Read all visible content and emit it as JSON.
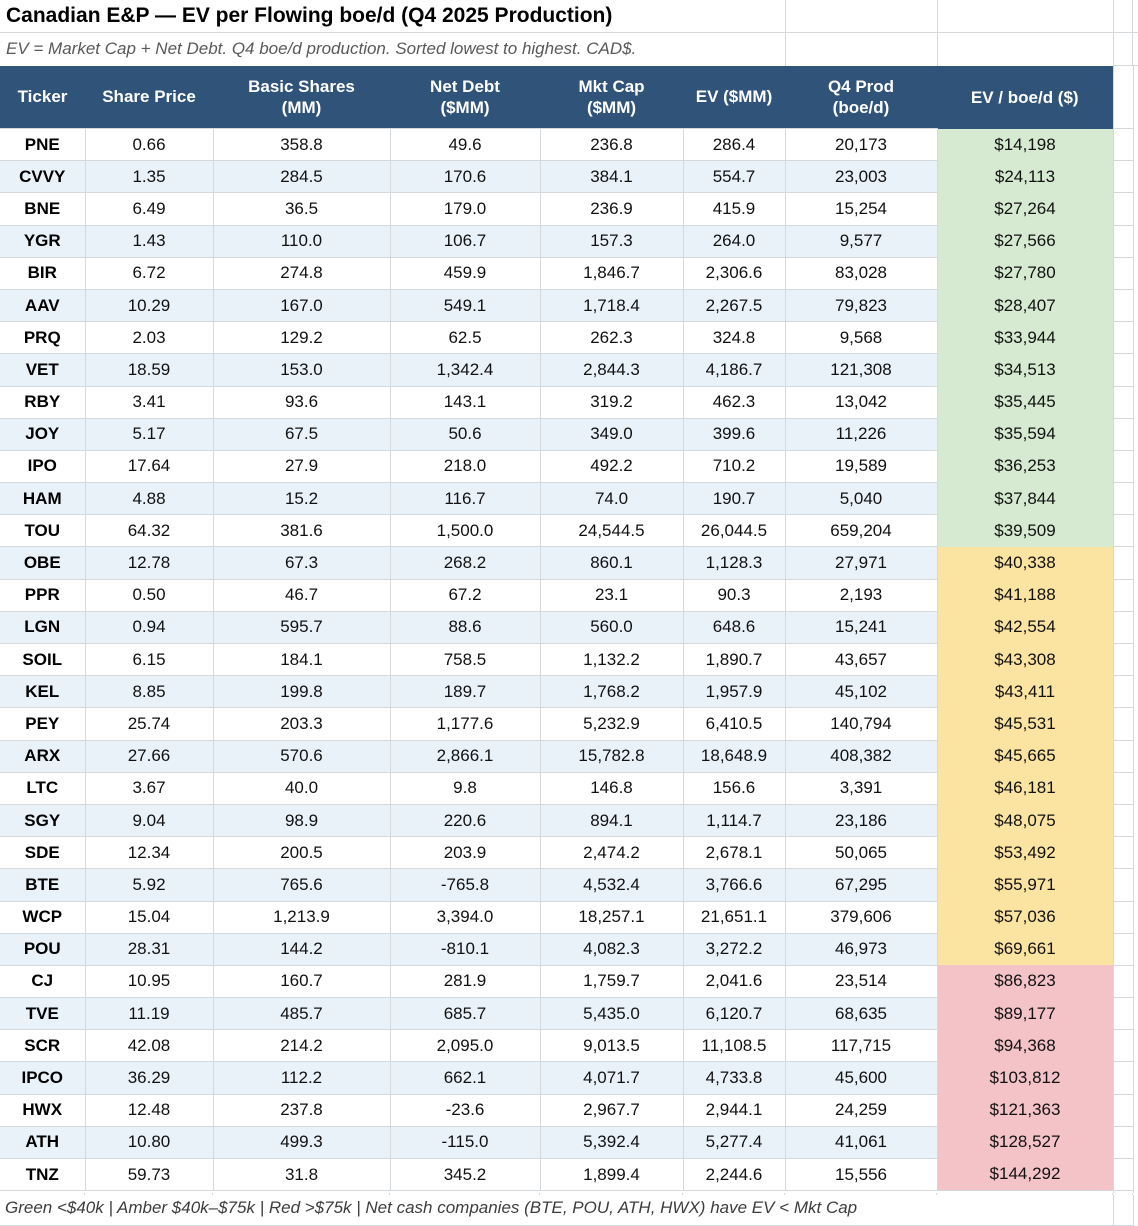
{
  "title": "Canadian E&P — EV per Flowing boe/d (Q4 2025 Production)",
  "subtitle": "EV = Market Cap + Net Debt. Q4 boe/d production. Sorted lowest to highest. CAD$.",
  "footer": "Green <$40k | Amber $40k–$75k | Red >$75k | Net cash companies (BTE, POU, ATH, HWX) have EV < Mkt Cap",
  "columns": [
    "Ticker",
    "Share Price",
    "Basic Shares\n(MM)",
    "Net Debt\n($MM)",
    "Mkt Cap\n($MM)",
    "EV ($MM)",
    "Q4 Prod\n(boe/d)",
    "EV / boe/d ($)"
  ],
  "colors": {
    "header_bg": "#305379",
    "row_alt": "#e9f1f9",
    "green": "#d5ead0",
    "amber": "#fbe3a1",
    "red": "#f4c3c7",
    "grid": "#d6d9dc"
  },
  "rows": [
    {
      "ticker": "PNE",
      "price": "0.66",
      "shares": "358.8",
      "debt": "49.6",
      "mktcap": "236.8",
      "ev": "286.4",
      "prod": "20,173",
      "ev_boed": "$14,198",
      "band": "green"
    },
    {
      "ticker": "CVVY",
      "price": "1.35",
      "shares": "284.5",
      "debt": "170.6",
      "mktcap": "384.1",
      "ev": "554.7",
      "prod": "23,003",
      "ev_boed": "$24,113",
      "band": "green"
    },
    {
      "ticker": "BNE",
      "price": "6.49",
      "shares": "36.5",
      "debt": "179.0",
      "mktcap": "236.9",
      "ev": "415.9",
      "prod": "15,254",
      "ev_boed": "$27,264",
      "band": "green"
    },
    {
      "ticker": "YGR",
      "price": "1.43",
      "shares": "110.0",
      "debt": "106.7",
      "mktcap": "157.3",
      "ev": "264.0",
      "prod": "9,577",
      "ev_boed": "$27,566",
      "band": "green"
    },
    {
      "ticker": "BIR",
      "price": "6.72",
      "shares": "274.8",
      "debt": "459.9",
      "mktcap": "1,846.7",
      "ev": "2,306.6",
      "prod": "83,028",
      "ev_boed": "$27,780",
      "band": "green"
    },
    {
      "ticker": "AAV",
      "price": "10.29",
      "shares": "167.0",
      "debt": "549.1",
      "mktcap": "1,718.4",
      "ev": "2,267.5",
      "prod": "79,823",
      "ev_boed": "$28,407",
      "band": "green"
    },
    {
      "ticker": "PRQ",
      "price": "2.03",
      "shares": "129.2",
      "debt": "62.5",
      "mktcap": "262.3",
      "ev": "324.8",
      "prod": "9,568",
      "ev_boed": "$33,944",
      "band": "green"
    },
    {
      "ticker": "VET",
      "price": "18.59",
      "shares": "153.0",
      "debt": "1,342.4",
      "mktcap": "2,844.3",
      "ev": "4,186.7",
      "prod": "121,308",
      "ev_boed": "$34,513",
      "band": "green"
    },
    {
      "ticker": "RBY",
      "price": "3.41",
      "shares": "93.6",
      "debt": "143.1",
      "mktcap": "319.2",
      "ev": "462.3",
      "prod": "13,042",
      "ev_boed": "$35,445",
      "band": "green"
    },
    {
      "ticker": "JOY",
      "price": "5.17",
      "shares": "67.5",
      "debt": "50.6",
      "mktcap": "349.0",
      "ev": "399.6",
      "prod": "11,226",
      "ev_boed": "$35,594",
      "band": "green"
    },
    {
      "ticker": "IPO",
      "price": "17.64",
      "shares": "27.9",
      "debt": "218.0",
      "mktcap": "492.2",
      "ev": "710.2",
      "prod": "19,589",
      "ev_boed": "$36,253",
      "band": "green"
    },
    {
      "ticker": "HAM",
      "price": "4.88",
      "shares": "15.2",
      "debt": "116.7",
      "mktcap": "74.0",
      "ev": "190.7",
      "prod": "5,040",
      "ev_boed": "$37,844",
      "band": "green"
    },
    {
      "ticker": "TOU",
      "price": "64.32",
      "shares": "381.6",
      "debt": "1,500.0",
      "mktcap": "24,544.5",
      "ev": "26,044.5",
      "prod": "659,204",
      "ev_boed": "$39,509",
      "band": "green"
    },
    {
      "ticker": "OBE",
      "price": "12.78",
      "shares": "67.3",
      "debt": "268.2",
      "mktcap": "860.1",
      "ev": "1,128.3",
      "prod": "27,971",
      "ev_boed": "$40,338",
      "band": "amber"
    },
    {
      "ticker": "PPR",
      "price": "0.50",
      "shares": "46.7",
      "debt": "67.2",
      "mktcap": "23.1",
      "ev": "90.3",
      "prod": "2,193",
      "ev_boed": "$41,188",
      "band": "amber"
    },
    {
      "ticker": "LGN",
      "price": "0.94",
      "shares": "595.7",
      "debt": "88.6",
      "mktcap": "560.0",
      "ev": "648.6",
      "prod": "15,241",
      "ev_boed": "$42,554",
      "band": "amber"
    },
    {
      "ticker": "SOIL",
      "price": "6.15",
      "shares": "184.1",
      "debt": "758.5",
      "mktcap": "1,132.2",
      "ev": "1,890.7",
      "prod": "43,657",
      "ev_boed": "$43,308",
      "band": "amber"
    },
    {
      "ticker": "KEL",
      "price": "8.85",
      "shares": "199.8",
      "debt": "189.7",
      "mktcap": "1,768.2",
      "ev": "1,957.9",
      "prod": "45,102",
      "ev_boed": "$43,411",
      "band": "amber"
    },
    {
      "ticker": "PEY",
      "price": "25.74",
      "shares": "203.3",
      "debt": "1,177.6",
      "mktcap": "5,232.9",
      "ev": "6,410.5",
      "prod": "140,794",
      "ev_boed": "$45,531",
      "band": "amber"
    },
    {
      "ticker": "ARX",
      "price": "27.66",
      "shares": "570.6",
      "debt": "2,866.1",
      "mktcap": "15,782.8",
      "ev": "18,648.9",
      "prod": "408,382",
      "ev_boed": "$45,665",
      "band": "amber"
    },
    {
      "ticker": "LTC",
      "price": "3.67",
      "shares": "40.0",
      "debt": "9.8",
      "mktcap": "146.8",
      "ev": "156.6",
      "prod": "3,391",
      "ev_boed": "$46,181",
      "band": "amber"
    },
    {
      "ticker": "SGY",
      "price": "9.04",
      "shares": "98.9",
      "debt": "220.6",
      "mktcap": "894.1",
      "ev": "1,114.7",
      "prod": "23,186",
      "ev_boed": "$48,075",
      "band": "amber"
    },
    {
      "ticker": "SDE",
      "price": "12.34",
      "shares": "200.5",
      "debt": "203.9",
      "mktcap": "2,474.2",
      "ev": "2,678.1",
      "prod": "50,065",
      "ev_boed": "$53,492",
      "band": "amber"
    },
    {
      "ticker": "BTE",
      "price": "5.92",
      "shares": "765.6",
      "debt": "-765.8",
      "mktcap": "4,532.4",
      "ev": "3,766.6",
      "prod": "67,295",
      "ev_boed": "$55,971",
      "band": "amber"
    },
    {
      "ticker": "WCP",
      "price": "15.04",
      "shares": "1,213.9",
      "debt": "3,394.0",
      "mktcap": "18,257.1",
      "ev": "21,651.1",
      "prod": "379,606",
      "ev_boed": "$57,036",
      "band": "amber"
    },
    {
      "ticker": "POU",
      "price": "28.31",
      "shares": "144.2",
      "debt": "-810.1",
      "mktcap": "4,082.3",
      "ev": "3,272.2",
      "prod": "46,973",
      "ev_boed": "$69,661",
      "band": "amber"
    },
    {
      "ticker": "CJ",
      "price": "10.95",
      "shares": "160.7",
      "debt": "281.9",
      "mktcap": "1,759.7",
      "ev": "2,041.6",
      "prod": "23,514",
      "ev_boed": "$86,823",
      "band": "red"
    },
    {
      "ticker": "TVE",
      "price": "11.19",
      "shares": "485.7",
      "debt": "685.7",
      "mktcap": "5,435.0",
      "ev": "6,120.7",
      "prod": "68,635",
      "ev_boed": "$89,177",
      "band": "red"
    },
    {
      "ticker": "SCR",
      "price": "42.08",
      "shares": "214.2",
      "debt": "2,095.0",
      "mktcap": "9,013.5",
      "ev": "11,108.5",
      "prod": "117,715",
      "ev_boed": "$94,368",
      "band": "red"
    },
    {
      "ticker": "IPCO",
      "price": "36.29",
      "shares": "112.2",
      "debt": "662.1",
      "mktcap": "4,071.7",
      "ev": "4,733.8",
      "prod": "45,600",
      "ev_boed": "$103,812",
      "band": "red"
    },
    {
      "ticker": "HWX",
      "price": "12.48",
      "shares": "237.8",
      "debt": "-23.6",
      "mktcap": "2,967.7",
      "ev": "2,944.1",
      "prod": "24,259",
      "ev_boed": "$121,363",
      "band": "red"
    },
    {
      "ticker": "ATH",
      "price": "10.80",
      "shares": "499.3",
      "debt": "-115.0",
      "mktcap": "5,392.4",
      "ev": "5,277.4",
      "prod": "41,061",
      "ev_boed": "$128,527",
      "band": "red"
    },
    {
      "ticker": "TNZ",
      "price": "59.73",
      "shares": "31.8",
      "debt": "345.2",
      "mktcap": "1,899.4",
      "ev": "2,244.6",
      "prod": "15,556",
      "ev_boed": "$144,292",
      "band": "red"
    }
  ]
}
